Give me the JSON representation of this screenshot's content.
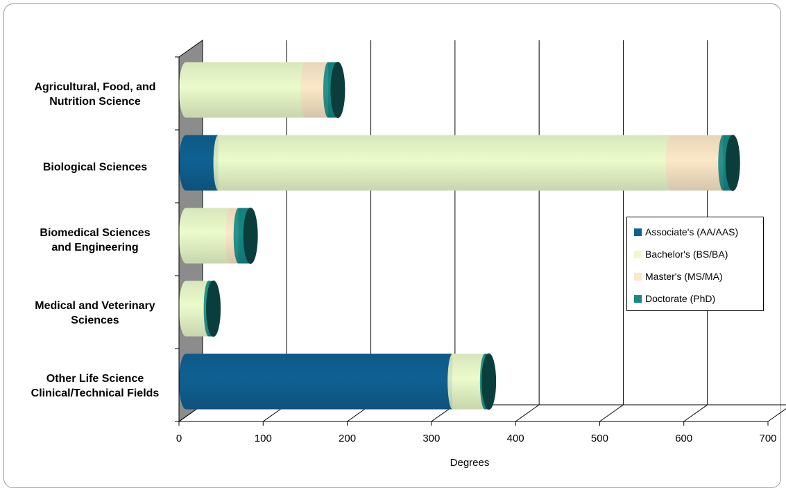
{
  "chart_data": {
    "type": "bar",
    "orientation": "horizontal",
    "stacked": true,
    "style": "3d-cylinder",
    "title": "",
    "xlabel": "Degrees",
    "ylabel": "",
    "xlim": [
      0,
      700
    ],
    "xticks": [
      "0",
      "100",
      "200",
      "300",
      "400",
      "500",
      "600",
      "700"
    ],
    "grid": true,
    "legend_position": "right",
    "categories": [
      [
        "Agricultural, Food, and",
        "Nutrition Science"
      ],
      [
        "Biological Sciences"
      ],
      [
        "Biomedical Sciences",
        "and Engineering"
      ],
      [
        "Medical and Veterinary",
        "Sciences"
      ],
      [
        "Other Life Science",
        "Clinical/Technical Fields"
      ]
    ],
    "series": [
      {
        "name": "Associate's (AA/AAS)",
        "color": "#0F6192",
        "values": [
          0,
          40,
          0,
          0,
          330
        ]
      },
      {
        "name": "Bachelor's (BS/BA)",
        "color": "#EBFBCB",
        "values": [
          148,
          560,
          55,
          28,
          40
        ]
      },
      {
        "name": "Master's (MS/MA)",
        "color": "#FBE8C8",
        "values": [
          28,
          65,
          10,
          0,
          0
        ]
      },
      {
        "name": "Doctorate (PhD)",
        "color": "#138A86",
        "values": [
          12,
          12,
          15,
          6,
          5
        ]
      }
    ]
  }
}
